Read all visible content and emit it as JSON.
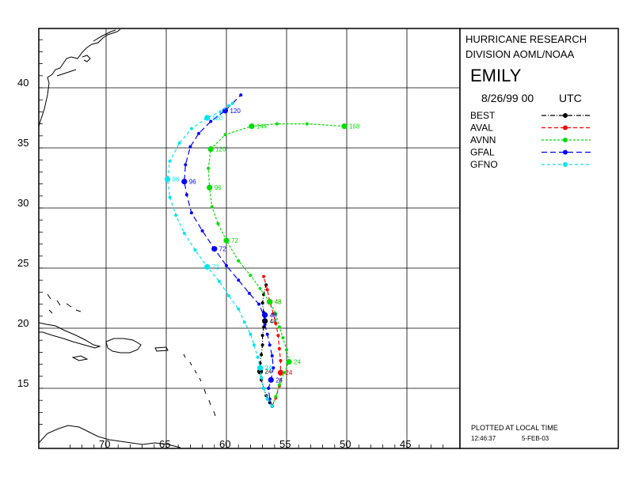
{
  "panel": {
    "org_line1": "HURRICANE RESEARCH",
    "org_line2": "DIVISION AOML/NOAA",
    "storm_name": "EMILY",
    "date": "8/26/99 00",
    "utc": "UTC",
    "plotted_note": "PLOTTED AT LOCAL TIME",
    "plot_time": "12:46:37",
    "plot_date": "5-FEB-03"
  },
  "axes": {
    "lat_ticks": [
      "40",
      "35",
      "30",
      "25",
      "20",
      "15"
    ],
    "lon_ticks": [
      "70",
      "65",
      "60",
      "55",
      "50",
      "45"
    ]
  },
  "legend": [
    {
      "name": "BEST",
      "color": "#000000"
    },
    {
      "name": "AVAL",
      "color": "#ff0000"
    },
    {
      "name": "AVNN",
      "color": "#00dd00"
    },
    {
      "name": "GFAL",
      "color": "#0000ff"
    },
    {
      "name": "GFNO",
      "color": "#00e5ee"
    }
  ],
  "tracks": [
    {
      "name": "BEST",
      "color": "#000000",
      "points": [
        [
          56.2,
          13.5
        ],
        [
          56.4,
          13.8
        ],
        [
          56.7,
          14.4
        ],
        [
          56.9,
          15.0
        ],
        [
          57.1,
          15.7
        ],
        [
          57.2,
          16.4
        ],
        [
          57.2,
          17.1
        ],
        [
          57.1,
          17.8
        ],
        [
          57.0,
          18.6
        ],
        [
          57.0,
          19.4
        ],
        [
          56.9,
          20.1
        ],
        [
          56.8,
          20.6
        ],
        [
          56.9,
          21.3
        ],
        [
          57.0,
          22.1
        ],
        [
          56.9,
          22.8
        ],
        [
          56.7,
          23.6
        ]
      ],
      "labels": [
        {
          "text": "24",
          "lon": 57.2,
          "lat": 16.4
        },
        {
          "text": "48",
          "lon": 56.8,
          "lat": 20.6
        }
      ]
    },
    {
      "name": "AVAL",
      "color": "#ff0000",
      "points": [
        [
          56.2,
          13.5
        ],
        [
          55.9,
          14.2
        ],
        [
          55.6,
          15.2
        ],
        [
          55.5,
          16.3
        ],
        [
          55.5,
          17.3
        ],
        [
          55.6,
          18.3
        ],
        [
          55.7,
          19.4
        ],
        [
          55.9,
          20.4
        ],
        [
          56.1,
          21.2
        ],
        [
          56.4,
          22.2
        ],
        [
          56.6,
          23.2
        ],
        [
          56.9,
          24.3
        ]
      ],
      "labels": [
        {
          "text": "24",
          "lon": 55.5,
          "lat": 16.3
        },
        {
          "text": "48",
          "lon": 56.4,
          "lat": 22.2
        }
      ]
    },
    {
      "name": "AVNN",
      "color": "#00dd00",
      "points": [
        [
          56.2,
          13.5
        ],
        [
          55.9,
          14.3
        ],
        [
          55.6,
          15.3
        ],
        [
          55.2,
          16.3
        ],
        [
          54.8,
          17.2
        ],
        [
          55.0,
          18.2
        ],
        [
          55.3,
          19.2
        ],
        [
          55.6,
          20.1
        ],
        [
          55.9,
          21.2
        ],
        [
          56.4,
          22.2
        ],
        [
          57.2,
          23.3
        ],
        [
          58.0,
          24.4
        ],
        [
          59.0,
          25.6
        ],
        [
          60.0,
          27.3
        ],
        [
          60.7,
          28.7
        ],
        [
          61.2,
          30.1
        ],
        [
          61.4,
          31.7
        ],
        [
          61.5,
          33.3
        ],
        [
          61.3,
          34.9
        ],
        [
          60.1,
          36.1
        ],
        [
          57.9,
          36.8
        ],
        [
          55.8,
          37.0
        ],
        [
          53.3,
          37.0
        ],
        [
          50.2,
          36.8
        ]
      ],
      "labels": [
        {
          "text": "24",
          "lon": 54.8,
          "lat": 17.2
        },
        {
          "text": "48",
          "lon": 56.4,
          "lat": 22.2
        },
        {
          "text": "72",
          "lon": 60.0,
          "lat": 27.3
        },
        {
          "text": "96",
          "lon": 61.4,
          "lat": 31.7
        },
        {
          "text": "120",
          "lon": 61.3,
          "lat": 34.9
        },
        {
          "text": "144",
          "lon": 57.9,
          "lat": 36.8
        },
        {
          "text": "168",
          "lon": 50.2,
          "lat": 36.8
        }
      ]
    },
    {
      "name": "GFAL",
      "color": "#0000ff",
      "points": [
        [
          56.2,
          13.5
        ],
        [
          56.4,
          14.1
        ],
        [
          56.5,
          15.0
        ],
        [
          56.3,
          15.7
        ],
        [
          56.1,
          16.7
        ],
        [
          56.2,
          17.7
        ],
        [
          56.4,
          18.6
        ],
        [
          56.6,
          19.5
        ],
        [
          56.8,
          20.3
        ],
        [
          56.9,
          21.1
        ],
        [
          57.3,
          22.0
        ],
        [
          58.1,
          22.9
        ],
        [
          59.0,
          24.0
        ],
        [
          60.0,
          25.2
        ],
        [
          61.0,
          26.6
        ],
        [
          62.0,
          28.1
        ],
        [
          62.9,
          29.6
        ],
        [
          63.3,
          31.1
        ],
        [
          63.5,
          32.2
        ],
        [
          63.4,
          33.6
        ],
        [
          63.0,
          35.1
        ],
        [
          62.3,
          36.2
        ],
        [
          61.3,
          37.2
        ],
        [
          60.1,
          38.1
        ],
        [
          58.8,
          39.4
        ]
      ],
      "labels": [
        {
          "text": "24",
          "lon": 56.3,
          "lat": 15.7
        },
        {
          "text": "48",
          "lon": 56.8,
          "lat": 21.1
        },
        {
          "text": "72",
          "lon": 61.0,
          "lat": 26.6
        },
        {
          "text": "96",
          "lon": 63.5,
          "lat": 32.2
        },
        {
          "text": "120",
          "lon": 60.1,
          "lat": 38.1
        }
      ]
    },
    {
      "name": "GFNO",
      "color": "#00e5ee",
      "points": [
        [
          56.2,
          13.5
        ],
        [
          56.6,
          14.1
        ],
        [
          56.9,
          15.0
        ],
        [
          57.1,
          15.9
        ],
        [
          57.2,
          16.7
        ],
        [
          57.4,
          17.6
        ],
        [
          57.7,
          18.6
        ],
        [
          58.0,
          19.5
        ],
        [
          58.5,
          20.5
        ],
        [
          59.0,
          21.6
        ],
        [
          59.8,
          22.7
        ],
        [
          60.6,
          23.9
        ],
        [
          61.6,
          25.1
        ],
        [
          62.6,
          26.5
        ],
        [
          63.5,
          27.9
        ],
        [
          64.2,
          29.4
        ],
        [
          64.7,
          30.9
        ],
        [
          64.9,
          32.4
        ],
        [
          64.7,
          33.9
        ],
        [
          63.9,
          35.4
        ],
        [
          62.9,
          36.6
        ],
        [
          61.6,
          37.5
        ],
        [
          60.5,
          38.0
        ],
        [
          59.8,
          38.5
        ],
        [
          59.5,
          38.7
        ]
      ],
      "labels": [
        {
          "text": "24",
          "lon": 57.2,
          "lat": 16.7
        },
        {
          "text": "72",
          "lon": 61.6,
          "lat": 25.1
        },
        {
          "text": "96",
          "lon": 64.9,
          "lat": 32.4
        },
        {
          "text": "120",
          "lon": 61.6,
          "lat": 37.5
        }
      ]
    }
  ]
}
